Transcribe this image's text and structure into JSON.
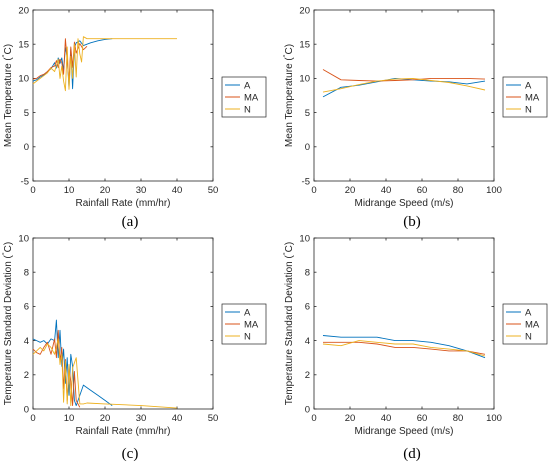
{
  "colors": {
    "A": "#0072BD",
    "MA": "#D95319",
    "N": "#EDB120",
    "axis": "#262626"
  },
  "chart_data": [
    {
      "type": "line",
      "caption": "(a)",
      "xlabel": "Rainfall Rate (mm/hr)",
      "ylabel": "Mean Temperature (°C)",
      "ylabel_pre": "Mean Temperature (",
      "ylabel_deg": "°",
      "ylabel_post": "C)",
      "xlim": [
        0,
        50
      ],
      "ylim": [
        -5,
        20
      ],
      "xticks": [
        "0",
        "10",
        "20",
        "30",
        "40",
        "50"
      ],
      "yticks": [
        "-5",
        "0",
        "5",
        "10",
        "15",
        "20"
      ],
      "legend": {
        "placement": "right",
        "entries": [
          "A",
          "MA",
          "N"
        ]
      },
      "series": [
        {
          "name": "A",
          "x": [
            0,
            1,
            2,
            3,
            4,
            5,
            6,
            6.5,
            7,
            7.5,
            8,
            8.5,
            9,
            9.5,
            10,
            10.5,
            11,
            11.5,
            12,
            13,
            14,
            16,
            18,
            20,
            22
          ],
          "y": [
            9.6,
            9.8,
            10.2,
            10.5,
            11.0,
            11.4,
            12.3,
            11.5,
            13.0,
            12.2,
            13.0,
            11.2,
            14.5,
            13.2,
            8.6,
            14.3,
            8.5,
            14.5,
            15.2,
            15.5,
            14.8,
            15.2,
            15.5,
            15.7,
            15.8
          ]
        },
        {
          "name": "MA",
          "x": [
            0,
            1,
            2,
            3,
            4,
            5,
            6,
            6.5,
            7,
            7.5,
            8,
            8.5,
            9,
            9.5,
            10,
            10.5,
            11,
            11.5,
            12,
            13,
            14,
            15
          ],
          "y": [
            9.9,
            10.0,
            10.4,
            10.6,
            11.0,
            11.6,
            11.8,
            12.6,
            11.6,
            12.8,
            12.3,
            10.6,
            15.8,
            12.6,
            9.5,
            14.6,
            11.6,
            15.3,
            13.7,
            15.1,
            14.2,
            14.7
          ]
        },
        {
          "name": "N",
          "x": [
            0,
            1,
            2,
            3,
            4,
            5,
            6,
            7,
            7.5,
            8,
            8.5,
            9,
            9.5,
            10,
            10.5,
            11,
            11.5,
            12,
            12.5,
            13,
            13.5,
            14,
            15,
            20,
            25,
            30,
            35,
            40
          ],
          "y": [
            9.2,
            9.6,
            10.0,
            10.4,
            10.8,
            11.5,
            11.0,
            12.8,
            10.0,
            11.8,
            9.6,
            8.2,
            14.6,
            8.4,
            13.2,
            10.0,
            15.0,
            10.2,
            15.8,
            13.6,
            12.4,
            16.1,
            15.8,
            15.8,
            15.8,
            15.8,
            15.8,
            15.8
          ]
        }
      ]
    },
    {
      "type": "line",
      "caption": "(b)",
      "xlabel": "Midrange Speed (m/s)",
      "ylabel": "Mean Temperature (°C)",
      "ylabel_pre": "Mean Temperature (",
      "ylabel_deg": "°",
      "ylabel_post": "C)",
      "xlim": [
        0,
        100
      ],
      "ylim": [
        -5,
        20
      ],
      "xticks": [
        "0",
        "20",
        "40",
        "60",
        "80",
        "100"
      ],
      "yticks": [
        "-5",
        "0",
        "5",
        "10",
        "15",
        "20"
      ],
      "legend": {
        "placement": "right",
        "entries": [
          "A",
          "MA",
          "N"
        ]
      },
      "series": [
        {
          "name": "A",
          "x": [
            5,
            15,
            25,
            35,
            45,
            55,
            65,
            75,
            85,
            95
          ],
          "y": [
            7.3,
            8.7,
            9.0,
            9.5,
            10.0,
            9.8,
            9.6,
            9.5,
            9.2,
            9.6
          ]
        },
        {
          "name": "MA",
          "x": [
            5,
            15,
            25,
            35,
            45,
            55,
            65,
            75,
            85,
            95
          ],
          "y": [
            11.3,
            9.8,
            9.7,
            9.6,
            9.7,
            9.8,
            10.0,
            10.0,
            10.0,
            9.9
          ]
        },
        {
          "name": "N",
          "x": [
            5,
            15,
            25,
            35,
            45,
            55,
            65,
            75,
            85,
            95
          ],
          "y": [
            8.0,
            8.5,
            9.1,
            9.6,
            9.9,
            10.0,
            9.7,
            9.4,
            8.9,
            8.3
          ]
        }
      ]
    },
    {
      "type": "line",
      "caption": "(c)",
      "xlabel": "Rainfall Rate (mm/hr)",
      "ylabel": "Temperature Standard Deviation (°C)",
      "ylabel_pre": "Temperature Standard Deviation (",
      "ylabel_deg": "°",
      "ylabel_post": "C)",
      "xlim": [
        0,
        50
      ],
      "ylim": [
        0,
        10
      ],
      "xticks": [
        "0",
        "10",
        "20",
        "30",
        "40",
        "50"
      ],
      "yticks": [
        "0",
        "2",
        "4",
        "6",
        "8",
        "10"
      ],
      "legend": {
        "placement": "right",
        "entries": [
          "A",
          "MA",
          "N"
        ]
      },
      "series": [
        {
          "name": "A",
          "x": [
            0,
            1,
            2,
            3,
            4,
            5,
            6,
            6.5,
            7,
            7.5,
            8,
            8.5,
            9,
            9.5,
            10,
            10.5,
            11,
            11.5,
            12,
            14,
            16,
            18,
            20,
            22
          ],
          "y": [
            4.1,
            4.0,
            3.9,
            4.0,
            3.8,
            4.1,
            4.0,
            5.2,
            3.0,
            4.6,
            2.5,
            3.5,
            1.5,
            3.0,
            0.8,
            3.2,
            2.5,
            0.5,
            0.2,
            1.4,
            1.1,
            0.8,
            0.5,
            0.2
          ]
        },
        {
          "name": "MA",
          "x": [
            0,
            1,
            2,
            3,
            4,
            5,
            6,
            6.5,
            7,
            7.5,
            8,
            8.5,
            9,
            9.5,
            10,
            10.5,
            11,
            11.5,
            12,
            13
          ],
          "y": [
            3.5,
            3.3,
            3.2,
            3.6,
            3.9,
            3.2,
            4.1,
            3.0,
            4.6,
            2.8,
            3.6,
            1.2,
            2.9,
            0.5,
            2.4,
            1.6,
            0.2,
            2.2,
            0.5,
            0.1
          ]
        },
        {
          "name": "N",
          "x": [
            0,
            1,
            2,
            3,
            4,
            5,
            6,
            7,
            7.5,
            8,
            8.5,
            9,
            9.5,
            10,
            10.5,
            11,
            12,
            13,
            14,
            15,
            20,
            30,
            40
          ],
          "y": [
            3.2,
            3.4,
            3.6,
            3.4,
            3.8,
            3.6,
            3.2,
            4.1,
            2.6,
            3.2,
            0.4,
            2.8,
            0.3,
            2.6,
            0.2,
            2.4,
            3.0,
            0.3,
            0.3,
            0.35,
            0.3,
            0.2,
            0.05
          ]
        }
      ]
    },
    {
      "type": "line",
      "caption": "(d)",
      "xlabel": "Midrange Speed (m/s)",
      "ylabel": "Temperature Standard Deviation (°C)",
      "ylabel_pre": "Temperature Standard Deviation (",
      "ylabel_deg": "°",
      "ylabel_post": "C)",
      "xlim": [
        0,
        100
      ],
      "ylim": [
        0,
        10
      ],
      "xticks": [
        "0",
        "20",
        "40",
        "60",
        "80",
        "100"
      ],
      "yticks": [
        "0",
        "2",
        "4",
        "6",
        "8",
        "10"
      ],
      "legend": {
        "placement": "right",
        "entries": [
          "A",
          "MA",
          "N"
        ]
      },
      "series": [
        {
          "name": "A",
          "x": [
            5,
            15,
            25,
            35,
            45,
            55,
            65,
            75,
            85,
            95
          ],
          "y": [
            4.3,
            4.2,
            4.2,
            4.2,
            4.0,
            4.0,
            3.9,
            3.7,
            3.4,
            3.0
          ]
        },
        {
          "name": "MA",
          "x": [
            5,
            15,
            25,
            35,
            45,
            55,
            65,
            75,
            85,
            95
          ],
          "y": [
            3.9,
            3.9,
            3.9,
            3.8,
            3.6,
            3.6,
            3.5,
            3.4,
            3.4,
            3.2
          ]
        },
        {
          "name": "N",
          "x": [
            5,
            15,
            25,
            35,
            45,
            55,
            65,
            75,
            85,
            95
          ],
          "y": [
            3.8,
            3.7,
            4.0,
            3.9,
            3.8,
            3.8,
            3.6,
            3.5,
            3.4,
            3.1
          ]
        }
      ]
    }
  ]
}
